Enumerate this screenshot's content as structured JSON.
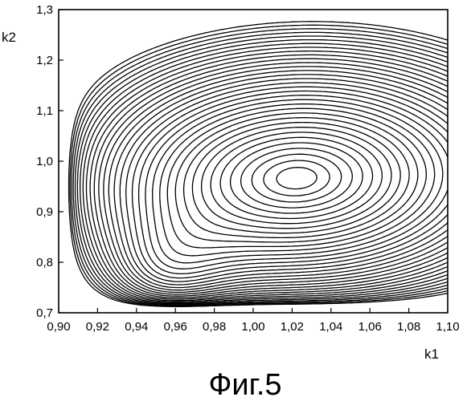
{
  "caption": "Фиг.5",
  "chart_data": {
    "type": "contour",
    "xlabel": "k1",
    "ylabel": "k2",
    "xlim": [
      0.9,
      1.1
    ],
    "ylim": [
      0.7,
      1.3
    ],
    "x_ticks": [
      0.9,
      0.92,
      0.94,
      0.96,
      0.98,
      1.0,
      1.02,
      1.04,
      1.06,
      1.08,
      1.1
    ],
    "x_tick_labels": [
      "0,90",
      "0,92",
      "0,94",
      "0,96",
      "0,98",
      "1,00",
      "1,02",
      "1,04",
      "1,06",
      "1,08",
      "1,10"
    ],
    "y_ticks": [
      0.7,
      0.8,
      0.9,
      1.0,
      1.1,
      1.2,
      1.3
    ],
    "y_tick_labels": [
      "0,7",
      "0,8",
      "0,9",
      "1,0",
      "1,1",
      "1,2",
      "1,3"
    ],
    "minimum": {
      "k1": 1.02,
      "k2": 0.96
    },
    "saddle": {
      "k1": 0.95,
      "k2": 0.79
    },
    "grid": false,
    "legend": "none",
    "contour_color": "#000000"
  }
}
